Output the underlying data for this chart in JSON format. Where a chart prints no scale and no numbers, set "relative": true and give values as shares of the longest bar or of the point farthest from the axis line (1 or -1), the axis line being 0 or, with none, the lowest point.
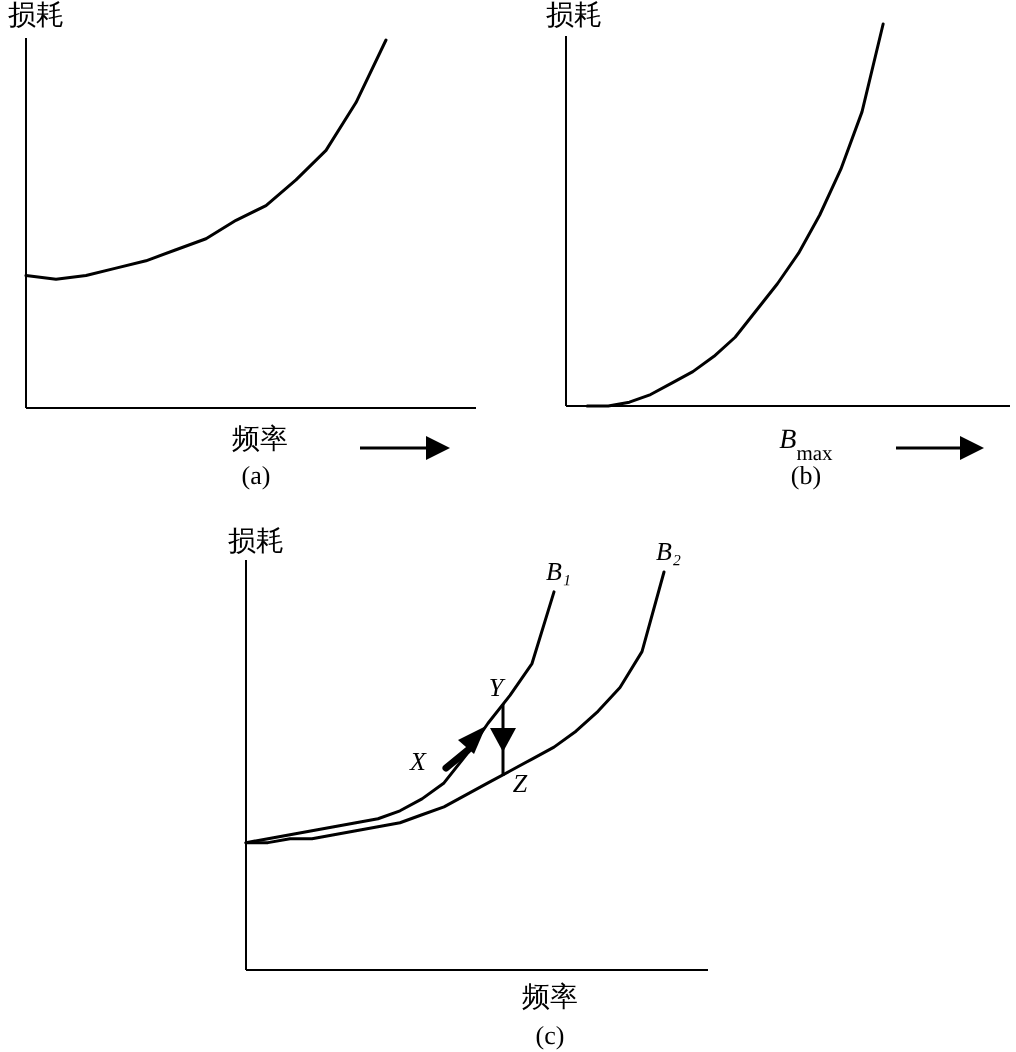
{
  "chart_data": [
    {
      "type": "line",
      "relative": true,
      "ylabel": "损耗",
      "xlabel": "频率",
      "annotations": [
        "(a)"
      ],
      "categories": [
        null,
        null,
        null,
        null,
        null,
        null,
        null,
        null,
        null,
        null,
        null,
        null,
        null,
        null,
        null,
        null
      ],
      "series": [
        {
          "color": "#000000",
          "values": [
            0.36,
            0.35,
            0.36,
            0.38,
            0.4,
            0.43,
            0.46,
            0.51,
            0.55,
            0.62,
            0.7,
            0.83,
            1,
            null,
            null,
            null
          ]
        }
      ]
    },
    {
      "type": "line",
      "relative": true,
      "ylabel": "损耗",
      "xlabel": "B$_{max}$",
      "annotations": [
        "(b)"
      ],
      "categories": [
        null,
        null,
        null,
        null,
        null,
        null,
        null,
        null,
        null,
        null,
        null,
        null,
        null,
        null,
        null,
        null,
        null,
        null,
        null,
        null,
        null,
        null
      ],
      "series": [
        {
          "color": "#000000",
          "values": [
            null,
            0,
            0,
            0.01,
            0.03,
            0.06,
            0.09,
            0.13,
            0.18,
            0.25,
            0.32,
            0.4,
            0.5,
            0.62,
            0.77,
            1,
            null,
            null,
            null,
            null,
            null,
            null
          ]
        }
      ]
    },
    {
      "type": "line",
      "relative": true,
      "ylabel": "损耗",
      "xlabel": "频率",
      "annotations": [
        "(c)",
        "X",
        "Y",
        "Z"
      ],
      "categories": [
        null,
        null,
        null,
        null,
        null,
        null,
        null,
        null,
        null,
        null,
        null,
        null,
        null,
        null,
        null,
        null,
        null,
        null,
        null,
        null,
        null,
        null
      ],
      "series": [
        {
          "name": "B₁",
          "color": "#000000",
          "values": [
            0.32,
            0.33,
            0.34,
            0.35,
            0.36,
            0.37,
            0.38,
            0.4,
            0.43,
            0.47,
            0.54,
            0.62,
            0.69,
            0.77,
            0.95,
            null,
            null,
            null,
            null,
            null,
            null,
            null
          ]
        },
        {
          "name": "B₂",
          "color": "#000000",
          "values": [
            0.32,
            0.32,
            0.33,
            0.33,
            0.34,
            0.35,
            0.36,
            0.37,
            0.39,
            0.41,
            0.44,
            0.47,
            0.5,
            0.53,
            0.56,
            0.6,
            0.65,
            0.71,
            0.8,
            1,
            null,
            null
          ]
        }
      ]
    }
  ]
}
